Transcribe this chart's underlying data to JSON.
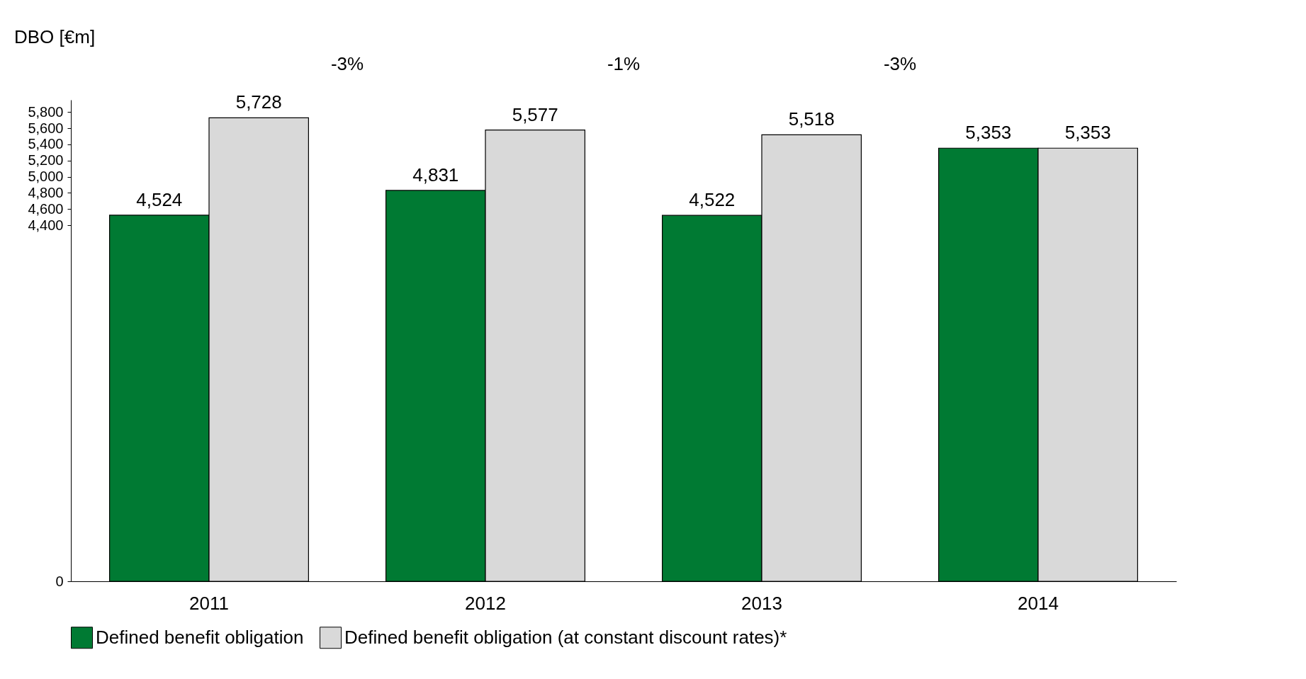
{
  "chart_data": {
    "type": "bar",
    "ylabel": "DBO [€m]",
    "categories": [
      "2011",
      "2012",
      "2013",
      "2014"
    ],
    "series": [
      {
        "name": "Defined benefit obligation",
        "color": "#007a33",
        "values": [
          4524,
          4831,
          4522,
          5353
        ],
        "value_labels": [
          "4,524",
          "4,831",
          "4,522",
          "5,353"
        ]
      },
      {
        "name": "Defined benefit obligation (at constant discount rates)*",
        "color": "#d9d9d9",
        "values": [
          5728,
          5577,
          5518,
          5353
        ],
        "value_labels": [
          "5,728",
          "5,577",
          "5,518",
          "5,353"
        ]
      }
    ],
    "ylim": [
      0,
      5950
    ],
    "yticks": [
      0,
      {
        "value": 4400,
        "label": "4,400"
      },
      {
        "value": 4600,
        "label": "4,600"
      },
      {
        "value": 4800,
        "label": "4,800"
      },
      {
        "value": 5000,
        "label": "5,000"
      },
      {
        "value": 5200,
        "label": "5,200"
      },
      {
        "value": 5400,
        "label": "5,400"
      },
      {
        "value": 5600,
        "label": "5,600"
      },
      {
        "value": 5800,
        "label": "5,800"
      }
    ],
    "legend": "bottom",
    "grid": false,
    "annotations": [
      "-3%",
      "-1%",
      "-3%"
    ]
  }
}
